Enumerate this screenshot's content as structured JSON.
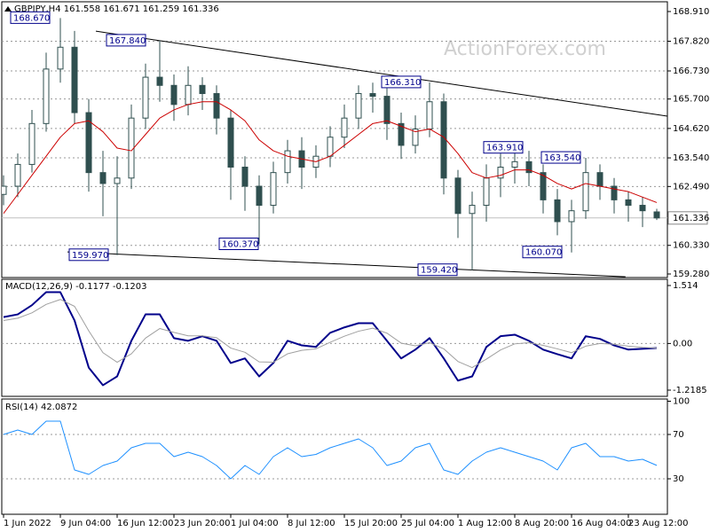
{
  "chart_data": [
    {
      "type": "candlestick",
      "title": "GBPJPY,H4  161.558 161.671 161.259 161.336",
      "watermark": "ActionForex.com",
      "categories": [
        "1 Jun 2022",
        null,
        null,
        null,
        "9 Jun 04:00",
        null,
        null,
        null,
        "16 Jun 12:00",
        null,
        null,
        null,
        "23 Jun 20:00",
        null,
        null,
        null,
        "1 Jul 04:00",
        null,
        null,
        null,
        "8 Jul 12:00",
        null,
        null,
        null,
        "15 Jul 20:00",
        null,
        null,
        null,
        "25 Jul 04:00",
        null,
        null,
        null,
        "1 Aug 12:00",
        null,
        null,
        null,
        "8 Aug 20:00",
        null,
        null,
        null,
        "16 Aug 04:00",
        null,
        null,
        null,
        "23 Aug 12:00",
        null,
        null
      ],
      "open": [
        162.2,
        162.5,
        163.3,
        164.8,
        166.8,
        167.6,
        165.2,
        163.0,
        162.6,
        162.8,
        165.0,
        166.5,
        166.2,
        165.5,
        166.2,
        165.9,
        165.0,
        163.2,
        162.5,
        161.8,
        163.0,
        163.8,
        163.2,
        163.6,
        164.3,
        165.0,
        165.9,
        165.8,
        164.8,
        164.0,
        164.6,
        165.6,
        162.8,
        161.5,
        161.8,
        162.8,
        163.2,
        163.4,
        163.0,
        162.0,
        161.2,
        161.6,
        163.0,
        162.5,
        162.0,
        161.8,
        161.558
      ],
      "high": [
        162.9,
        163.7,
        165.3,
        167.4,
        168.67,
        168.2,
        165.7,
        163.8,
        163.6,
        165.5,
        167.0,
        167.84,
        166.6,
        166.9,
        166.5,
        166.2,
        165.3,
        163.6,
        162.9,
        163.4,
        164.2,
        164.3,
        164.0,
        164.7,
        165.5,
        166.2,
        166.3,
        166.1,
        165.2,
        165.1,
        166.31,
        165.9,
        163.1,
        162.3,
        163.3,
        163.7,
        163.91,
        163.8,
        163.3,
        162.4,
        162.0,
        163.54,
        163.3,
        162.8,
        162.3,
        162.1,
        161.671
      ],
      "low": [
        161.8,
        162.1,
        163.0,
        164.5,
        166.3,
        164.8,
        162.3,
        161.4,
        159.97,
        162.4,
        164.6,
        165.6,
        164.9,
        165.1,
        165.3,
        164.4,
        162.0,
        161.6,
        160.37,
        161.5,
        162.6,
        162.4,
        162.8,
        163.2,
        163.9,
        164.6,
        165.2,
        164.2,
        163.5,
        163.7,
        164.3,
        162.2,
        160.6,
        159.42,
        161.2,
        162.1,
        162.6,
        162.5,
        161.5,
        160.7,
        160.07,
        161.3,
        162.0,
        161.5,
        161.2,
        161.0,
        161.259
      ],
      "close": [
        162.5,
        163.3,
        164.8,
        166.8,
        167.6,
        165.2,
        163.0,
        162.6,
        162.8,
        165.0,
        166.5,
        166.2,
        165.5,
        166.2,
        165.9,
        165.0,
        163.2,
        162.5,
        161.8,
        163.0,
        163.8,
        163.2,
        163.6,
        164.3,
        165.0,
        165.9,
        165.8,
        164.8,
        164.0,
        164.6,
        165.6,
        162.8,
        161.5,
        161.8,
        162.8,
        163.2,
        163.4,
        163.0,
        162.0,
        161.2,
        161.6,
        163.0,
        162.5,
        162.0,
        161.8,
        161.6,
        161.336
      ],
      "color": "#2f4f4f",
      "ma": {
        "color": "#cc0000",
        "values": [
          161.5,
          162.2,
          162.9,
          163.6,
          164.3,
          164.8,
          164.9,
          164.5,
          163.9,
          163.8,
          164.4,
          165.0,
          165.3,
          165.5,
          165.6,
          165.6,
          165.3,
          164.9,
          164.2,
          163.8,
          163.6,
          163.5,
          163.4,
          163.6,
          164.0,
          164.4,
          164.8,
          164.9,
          164.7,
          164.5,
          164.6,
          164.3,
          163.7,
          163.0,
          162.8,
          162.9,
          163.1,
          163.1,
          162.9,
          162.6,
          162.4,
          162.6,
          162.5,
          162.4,
          162.3,
          162.1,
          161.9
        ]
      },
      "trendlines": [
        {
          "x": [
            6.5,
            46.75
          ],
          "y": [
            168.19,
            165.07
          ]
        },
        {
          "x": [
            4.5,
            43.8
          ],
          "y": [
            160.09,
            159.18
          ]
        }
      ],
      "annotations": [
        {
          "label": "168.670",
          "value": 168.67
        },
        {
          "label": "167.840",
          "value": 167.84
        },
        {
          "label": "166.310",
          "value": 166.31
        },
        {
          "label": "163.910",
          "value": 163.91
        },
        {
          "label": "163.540",
          "value": 163.54
        },
        {
          "label": "159.970",
          "value": 159.97
        },
        {
          "label": "160.370",
          "value": 160.37
        },
        {
          "label": "159.420",
          "value": 159.42
        },
        {
          "label": "160.070",
          "value": 160.07
        }
      ],
      "last_price": {
        "value": 161.336,
        "label": "161.336"
      },
      "ylim": [
        159.28,
        168.91
      ],
      "yticks": [
        {
          "value": 168.91,
          "label": "168.910"
        },
        {
          "value": 167.82,
          "label": "167.820"
        },
        {
          "value": 166.73,
          "label": "166.730"
        },
        {
          "value": 165.7,
          "label": "165.700"
        },
        {
          "value": 164.62,
          "label": "164.620"
        },
        {
          "value": 163.54,
          "label": "163.540"
        },
        {
          "value": 162.49,
          "label": "162.490"
        },
        {
          "value": 160.33,
          "label": "160.330"
        },
        {
          "value": 159.28,
          "label": "159.280"
        }
      ]
    },
    {
      "type": "line",
      "title": "MACD(12,26,9) -0.1177 -0.1203",
      "series": [
        {
          "color": "#00008b",
          "values": [
            0.69,
            0.76,
            1.0,
            1.34,
            1.34,
            0.6,
            -0.63,
            -1.09,
            -0.86,
            0.07,
            0.76,
            0.76,
            0.14,
            0.07,
            0.19,
            0.07,
            -0.51,
            -0.39,
            -0.86,
            -0.51,
            0.07,
            -0.05,
            -0.09,
            0.28,
            0.42,
            0.53,
            0.53,
            0.07,
            -0.39,
            -0.16,
            0.14,
            -0.39,
            -0.97,
            -0.86,
            -0.09,
            0.19,
            0.23,
            0.07,
            -0.16,
            -0.28,
            -0.39,
            0.19,
            0.12,
            -0.05,
            -0.16,
            -0.14,
            -0.1177
          ]
        },
        {
          "color": "#a0a0a0",
          "values": [
            0.6,
            0.66,
            0.8,
            1.02,
            1.15,
            0.97,
            0.33,
            -0.24,
            -0.49,
            -0.27,
            0.14,
            0.39,
            0.29,
            0.2,
            0.2,
            0.15,
            -0.12,
            -0.23,
            -0.48,
            -0.49,
            -0.27,
            -0.18,
            -0.14,
            0.03,
            0.19,
            0.32,
            0.4,
            0.27,
            0.01,
            -0.06,
            0.02,
            -0.14,
            -0.47,
            -0.63,
            -0.41,
            -0.17,
            -0.01,
            0.02,
            -0.05,
            -0.14,
            -0.24,
            -0.07,
            0.0,
            -0.02,
            -0.07,
            -0.1,
            -0.1203
          ]
        }
      ],
      "ylim": [
        -1.2185,
        1.514
      ],
      "yticks": [
        1.514,
        {
          "value": 0,
          "label": "0.00"
        },
        -1.2185
      ]
    },
    {
      "type": "line",
      "title": "RSI(14) 42.0872",
      "series": [
        {
          "color": "#1e90ff",
          "values": [
            70,
            74,
            70,
            82,
            82,
            38,
            34,
            42,
            46,
            58,
            62,
            62,
            50,
            54,
            50,
            42,
            30,
            42,
            34,
            50,
            58,
            50,
            52,
            58,
            62,
            66,
            58,
            42,
            46,
            58,
            62,
            38,
            34,
            46,
            54,
            58,
            54,
            50,
            46,
            38,
            58,
            62,
            50,
            50,
            46,
            47.6,
            42.0872
          ]
        }
      ],
      "ylim": [
        0,
        100
      ],
      "yticks": [
        100,
        70,
        30
      ]
    }
  ]
}
